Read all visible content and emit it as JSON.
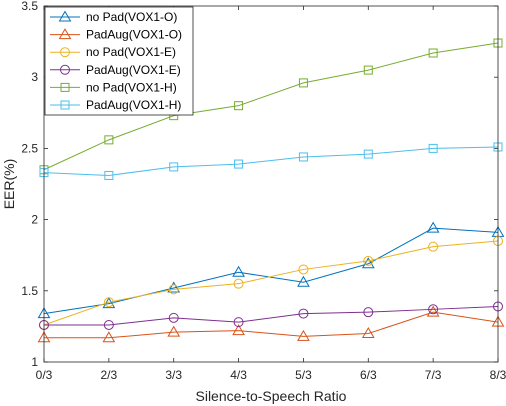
{
  "chart_data": {
    "type": "line",
    "title": "",
    "xlabel": "Silence-to-Speech Ratio",
    "ylabel": "EER(%)",
    "categories": [
      "0/3",
      "2/3",
      "3/3",
      "4/3",
      "5/3",
      "6/3",
      "7/3",
      "8/3"
    ],
    "ylim": [
      1,
      3.5
    ],
    "yticks": [
      "1",
      "1.5",
      "2",
      "2.5",
      "3",
      "3.5"
    ],
    "grid": false,
    "legend_position": "top-left",
    "series": [
      {
        "name": "no Pad(VOX1-O)",
        "color": "#0072BD",
        "marker": "triangle",
        "values": [
          1.34,
          1.41,
          1.52,
          1.63,
          1.56,
          1.69,
          1.94,
          1.91
        ]
      },
      {
        "name": "PadAug(VOX1-O)",
        "color": "#D95319",
        "marker": "triangle",
        "values": [
          1.17,
          1.17,
          1.21,
          1.22,
          1.18,
          1.2,
          1.35,
          1.28
        ]
      },
      {
        "name": "no Pad(VOX1-E)",
        "color": "#EDB120",
        "marker": "circle",
        "values": [
          1.26,
          1.42,
          1.51,
          1.55,
          1.65,
          1.71,
          1.81,
          1.85
        ]
      },
      {
        "name": "PadAug(VOX1-E)",
        "color": "#7E2F8E",
        "marker": "circle",
        "values": [
          1.26,
          1.26,
          1.31,
          1.28,
          1.34,
          1.35,
          1.37,
          1.39
        ]
      },
      {
        "name": "no Pad(VOX1-H)",
        "color": "#77AC30",
        "marker": "square",
        "values": [
          2.35,
          2.56,
          2.73,
          2.8,
          2.96,
          3.05,
          3.17,
          3.24
        ]
      },
      {
        "name": "PadAug(VOX1-H)",
        "color": "#4DBEEE",
        "marker": "square",
        "values": [
          2.33,
          2.31,
          2.37,
          2.39,
          2.44,
          2.46,
          2.5,
          2.51
        ]
      }
    ]
  }
}
